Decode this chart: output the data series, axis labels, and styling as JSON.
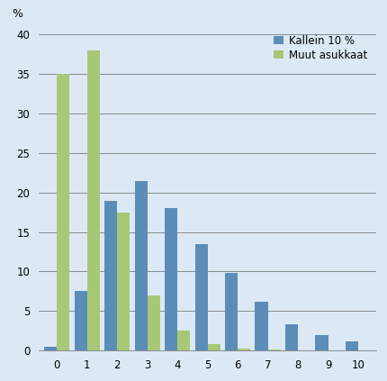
{
  "categories": [
    0,
    1,
    2,
    3,
    4,
    5,
    6,
    7,
    8,
    9,
    10
  ],
  "kallein_10": [
    0.5,
    7.5,
    19.0,
    21.5,
    18.0,
    13.5,
    9.8,
    6.2,
    3.3,
    2.0,
    1.2
  ],
  "muut_asukkaat": [
    35.0,
    38.0,
    17.5,
    7.0,
    2.5,
    0.8,
    0.2,
    0.1,
    0.0,
    0.0,
    0.0
  ],
  "kallein_color": "#5b8db8",
  "muut_color": "#a8c878",
  "background_color": "#dce9f5",
  "percent_label": "%",
  "ylim": [
    0,
    41
  ],
  "yticks": [
    0,
    5,
    10,
    15,
    20,
    25,
    30,
    35,
    40
  ],
  "legend_kallein": "Kallein 10 %",
  "legend_muut": "Muut asukkaat",
  "grid_color": "#7a7a7a",
  "bar_width": 0.42,
  "legend_fontsize": 8.5,
  "tick_fontsize": 8.5,
  "figure_width": 4.31,
  "figure_height": 4.23,
  "dpi": 100
}
